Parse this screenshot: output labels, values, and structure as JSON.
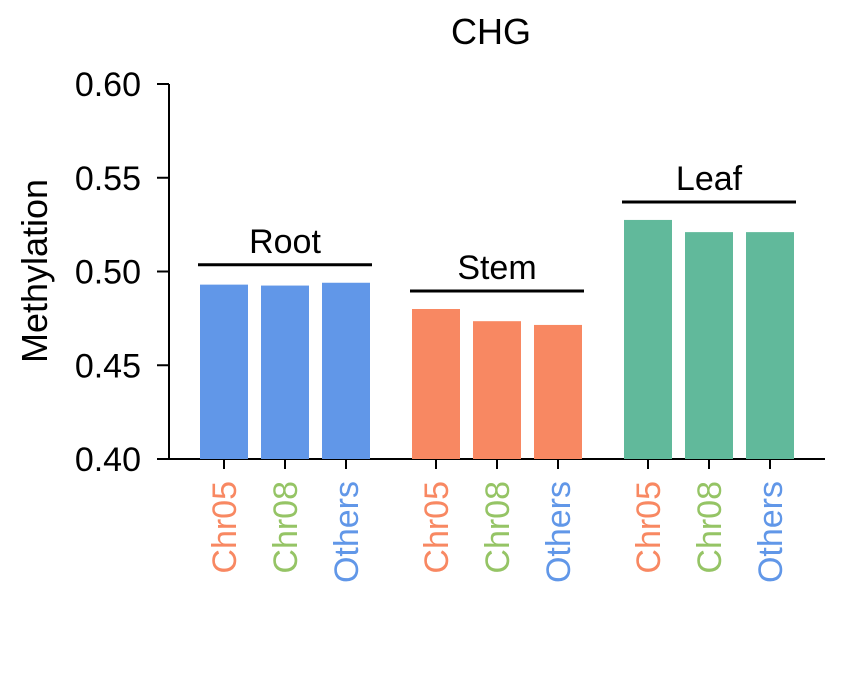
{
  "chart_data": {
    "type": "bar",
    "title": "CHG",
    "ylabel": "Methylation",
    "xlabel": "",
    "ylim": [
      0.4,
      0.6
    ],
    "yticks": [
      "0.40",
      "0.45",
      "0.50",
      "0.55",
      "0.60"
    ],
    "grid": false,
    "groups": [
      {
        "name": "Root",
        "color": "#6197E8",
        "categories": [
          "Chr05",
          "Chr08",
          "Others"
        ],
        "values": [
          0.493,
          0.4925,
          0.494
        ]
      },
      {
        "name": "Stem",
        "color": "#F88862",
        "categories": [
          "Chr05",
          "Chr08",
          "Others"
        ],
        "values": [
          0.48,
          0.4735,
          0.4715
        ]
      },
      {
        "name": "Leaf",
        "color": "#61B99B",
        "categories": [
          "Chr05",
          "Chr08",
          "Others"
        ],
        "values": [
          0.5275,
          0.521,
          0.521
        ]
      }
    ],
    "category_label_colors": {
      "Chr05": "#F88862",
      "Chr08": "#95C465",
      "Others": "#6197E8"
    }
  }
}
